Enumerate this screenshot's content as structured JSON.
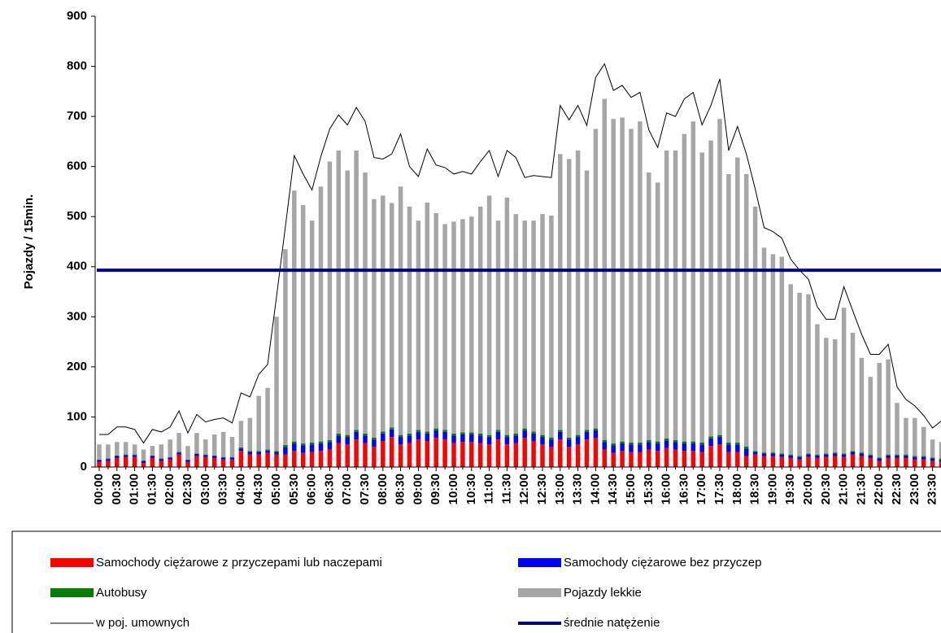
{
  "chart_data": {
    "type": "bar",
    "stacked": true,
    "y_label": "Pojazdy / 15min.",
    "categories": [
      "00:00",
      null,
      "00:30",
      null,
      "01:00",
      null,
      "01:30",
      null,
      "02:00",
      null,
      "02:30",
      null,
      "03:00",
      null,
      "03:30",
      null,
      "04:00",
      null,
      "04:30",
      null,
      "05:00",
      null,
      "05:30",
      null,
      "06:00",
      null,
      "06:30",
      null,
      "07:00",
      null,
      "07:30",
      null,
      "08:00",
      null,
      "08:30",
      null,
      "09:00",
      null,
      "09:30",
      null,
      "10:00",
      null,
      "10:30",
      null,
      "11:00",
      null,
      "11:30",
      null,
      "12:00",
      null,
      "12:30",
      null,
      "13:00",
      null,
      "13:30",
      null,
      "14:00",
      null,
      "14:30",
      null,
      "15:00",
      null,
      "15:30",
      null,
      "16:00",
      null,
      "16:30",
      null,
      "17:00",
      null,
      "17:30",
      null,
      "18:00",
      null,
      "18:30",
      null,
      "19:00",
      null,
      "19:30",
      null,
      "20:00",
      null,
      "20:30",
      null,
      "21:00",
      null,
      "21:30",
      null,
      "22:00",
      null,
      "22:30",
      null,
      "23:00",
      null,
      "23:30",
      null
    ],
    "series": [
      {
        "name": "Samochody ciężarowe z przyczepami lub naczepami",
        "color": "#ff0000",
        "values": [
          10,
          12,
          18,
          20,
          20,
          8,
          18,
          12,
          15,
          25,
          10,
          22,
          20,
          18,
          15,
          15,
          32,
          25,
          25,
          28,
          25,
          25,
          32,
          28,
          30,
          32,
          35,
          48,
          45,
          55,
          48,
          40,
          52,
          60,
          45,
          48,
          55,
          52,
          58,
          55,
          48,
          50,
          50,
          48,
          45,
          55,
          45,
          48,
          58,
          52,
          45,
          40,
          55,
          40,
          45,
          55,
          58,
          35,
          28,
          32,
          30,
          30,
          35,
          32,
          38,
          35,
          32,
          32,
          30,
          42,
          45,
          30,
          30,
          22,
          25,
          22,
          22,
          20,
          18,
          15,
          20,
          18,
          20,
          22,
          20,
          25,
          22,
          18,
          12,
          18,
          18,
          18,
          15,
          15,
          12,
          10
        ]
      },
      {
        "name": "Samochody ciężarowe bez przyczep",
        "color": "#0000ff",
        "values": [
          4,
          4,
          4,
          4,
          4,
          4,
          4,
          4,
          4,
          4,
          4,
          4,
          4,
          4,
          4,
          4,
          5,
          5,
          5,
          5,
          5,
          15,
          15,
          15,
          15,
          15,
          15,
          15,
          15,
          15,
          15,
          15,
          15,
          15,
          15,
          15,
          15,
          15,
          15,
          15,
          15,
          15,
          15,
          15,
          15,
          15,
          15,
          15,
          15,
          15,
          15,
          15,
          15,
          15,
          15,
          15,
          15,
          15,
          15,
          15,
          15,
          15,
          15,
          15,
          15,
          15,
          15,
          15,
          15,
          15,
          15,
          15,
          15,
          15,
          5,
          5,
          5,
          5,
          5,
          5,
          5,
          5,
          5,
          5,
          5,
          5,
          5,
          5,
          5,
          5,
          5,
          5,
          5,
          5,
          5,
          5
        ]
      },
      {
        "name": "Autobusy",
        "color": "#008000",
        "values": [
          1,
          1,
          1,
          1,
          1,
          1,
          1,
          1,
          1,
          1,
          1,
          1,
          1,
          1,
          1,
          1,
          2,
          2,
          2,
          2,
          2,
          4,
          4,
          4,
          4,
          4,
          4,
          4,
          4,
          4,
          4,
          4,
          4,
          4,
          4,
          4,
          4,
          4,
          4,
          4,
          4,
          4,
          4,
          4,
          4,
          4,
          4,
          4,
          4,
          4,
          4,
          4,
          4,
          4,
          4,
          4,
          4,
          4,
          4,
          4,
          4,
          4,
          4,
          4,
          4,
          4,
          4,
          4,
          4,
          4,
          4,
          4,
          4,
          4,
          2,
          2,
          2,
          2,
          2,
          2,
          2,
          2,
          2,
          2,
          2,
          2,
          2,
          2,
          2,
          2,
          2,
          2,
          2,
          2,
          2,
          2
        ]
      },
      {
        "name": "Pojazdy lekkie",
        "color": "#a6a6a6",
        "values": [
          30,
          28,
          27,
          25,
          20,
          22,
          19,
          28,
          35,
          38,
          27,
          41,
          30,
          42,
          50,
          40,
          53,
          66,
          110,
          123,
          268,
          391,
          501,
          476,
          443,
          509,
          556,
          565,
          528,
          558,
          521,
          476,
          471,
          448,
          496,
          453,
          418,
          457,
          430,
          411,
          423,
          426,
          431,
          453,
          478,
          418,
          474,
          438,
          415,
          421,
          441,
          443,
          551,
          556,
          568,
          518,
          598,
          681,
          648,
          647,
          626,
          641,
          534,
          517,
          575,
          578,
          614,
          639,
          579,
          591,
          631,
          536,
          569,
          544,
          488,
          409,
          396,
          393,
          340,
          326,
          318,
          260,
          231,
          226,
          291,
          236,
          189,
          155,
          189,
          190,
          103,
          73,
          76,
          58,
          36,
          33
        ]
      }
    ],
    "lines": [
      {
        "name": "w poj. umownych",
        "color": "#000000",
        "values": [
          65,
          65,
          80,
          80,
          75,
          48,
          75,
          70,
          80,
          112,
          68,
          105,
          90,
          95,
          98,
          88,
          148,
          140,
          185,
          205,
          340,
          480,
          622,
          585,
          553,
          620,
          675,
          703,
          683,
          718,
          690,
          618,
          615,
          625,
          665,
          600,
          580,
          635,
          603,
          598,
          585,
          590,
          585,
          610,
          632,
          580,
          632,
          618,
          578,
          582,
          580,
          578,
          722,
          693,
          722,
          682,
          778,
          805,
          752,
          762,
          738,
          748,
          673,
          638,
          707,
          700,
          735,
          748,
          683,
          722,
          775,
          632,
          680,
          625,
          555,
          478,
          470,
          457,
          415,
          393,
          375,
          320,
          295,
          295,
          360,
          312,
          265,
          225,
          225,
          245,
          160,
          135,
          122,
          103,
          78,
          92
        ]
      }
    ],
    "mean_line": {
      "name": "średnie natężenie",
      "color": "#000080",
      "value": 393
    },
    "ylim": [
      0,
      900
    ],
    "yticks": [
      0,
      100,
      200,
      300,
      400,
      500,
      600,
      700,
      800,
      900
    ],
    "grid": false
  }
}
